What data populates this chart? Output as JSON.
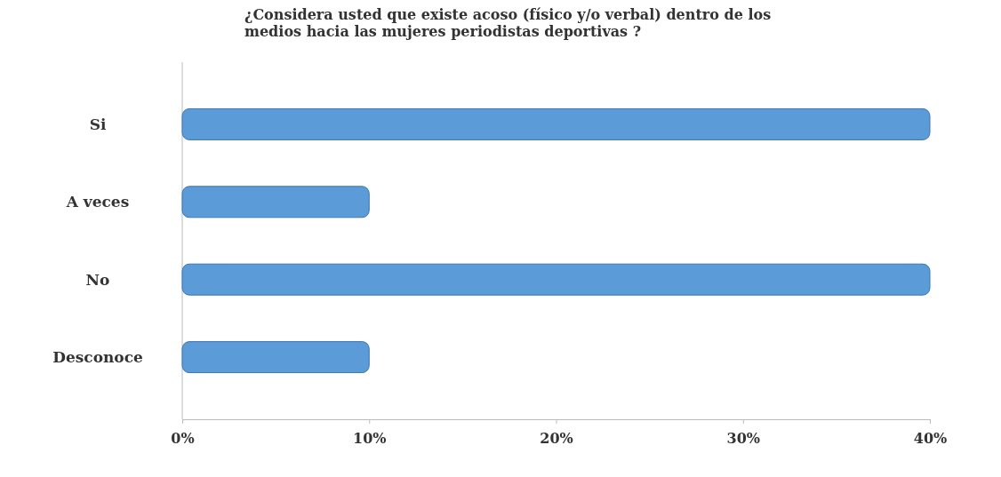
{
  "chart_data": {
    "type": "bar",
    "orientation": "horizontal",
    "title": "¿Considera usted que existe acoso (físico y/o verbal) dentro de los medios hacia las mujeres periodistas deportivas ?",
    "categories": [
      "Si",
      "A veces",
      "No",
      "Desconoce"
    ],
    "values": [
      40,
      10,
      40,
      10
    ],
    "color": "#5b9bd8",
    "xlim": [
      0,
      40
    ],
    "xticks": [
      {
        "value": 0,
        "label": "0%"
      },
      {
        "value": 10,
        "label": "10%"
      },
      {
        "value": 20,
        "label": "20%"
      },
      {
        "value": 30,
        "label": "30%"
      },
      {
        "value": 40,
        "label": "40%"
      }
    ]
  }
}
